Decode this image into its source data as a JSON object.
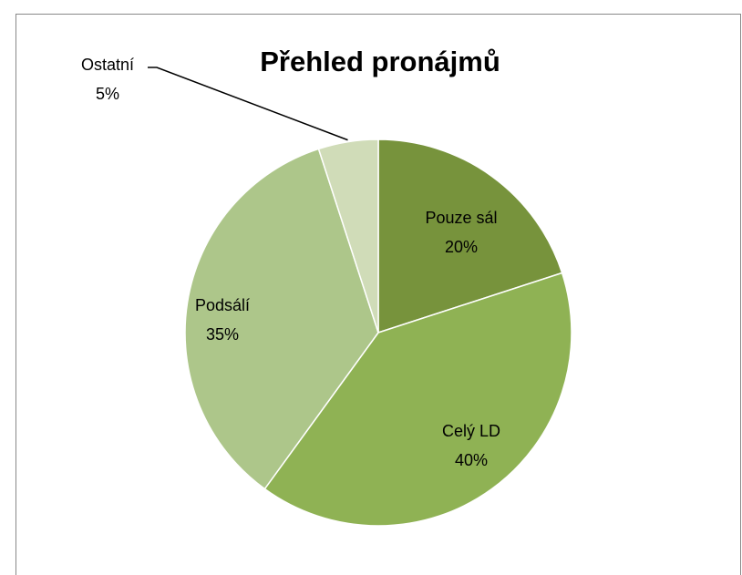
{
  "chart_data": {
    "type": "pie",
    "title": "Přehled pronájmů",
    "categories": [
      "Pouze sál",
      "Celý LD",
      "Podsálí",
      "Ostatní"
    ],
    "values": [
      20,
      40,
      35,
      5
    ],
    "value_labels": [
      "20%",
      "40%",
      "35%",
      "5%"
    ],
    "colors": [
      "#77933c",
      "#8fb254",
      "#adc68a",
      "#d0dcb8"
    ]
  }
}
